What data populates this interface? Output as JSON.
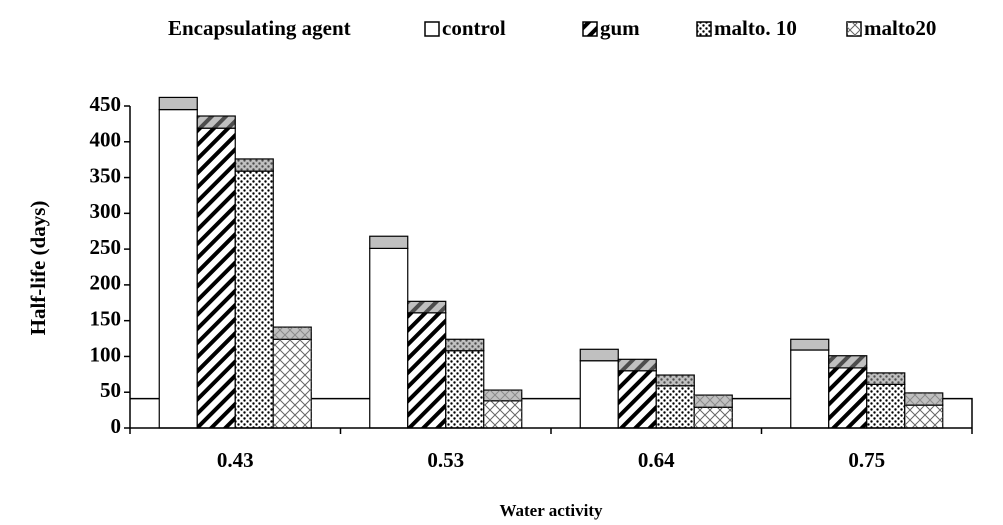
{
  "chart_data": {
    "type": "bar",
    "stacked_error": true,
    "legend_title": "Encapsulating agent",
    "x_label": "Water activity",
    "y_label": "Half-life (days)",
    "categories": [
      "0.43",
      "0.53",
      "0.64",
      "0.75"
    ],
    "series": [
      {
        "name": "control",
        "color": "#ffffff",
        "pattern": "none",
        "values": [
          445,
          251,
          94,
          109
        ],
        "errors": [
          17,
          17,
          16,
          15
        ]
      },
      {
        "name": "gum",
        "color": "#ffffff",
        "pattern": "stripes",
        "values": [
          419,
          161,
          80,
          84
        ],
        "errors": [
          17,
          16,
          16,
          17
        ]
      },
      {
        "name": "malto. 10",
        "color": "#ffffff",
        "pattern": "dots",
        "values": [
          359,
          108,
          59,
          61
        ],
        "errors": [
          17,
          16,
          15,
          16
        ]
      },
      {
        "name": "malto20",
        "color": "#ffffff",
        "pattern": "cross",
        "values": [
          124,
          38,
          29,
          32
        ],
        "errors": [
          17,
          15,
          17,
          17
        ]
      }
    ],
    "error_color": "#c0c0c0",
    "reference_line": 41,
    "ylim": [
      0,
      450
    ],
    "yticks": [
      0,
      50,
      100,
      150,
      200,
      250,
      300,
      350,
      400,
      450
    ]
  }
}
